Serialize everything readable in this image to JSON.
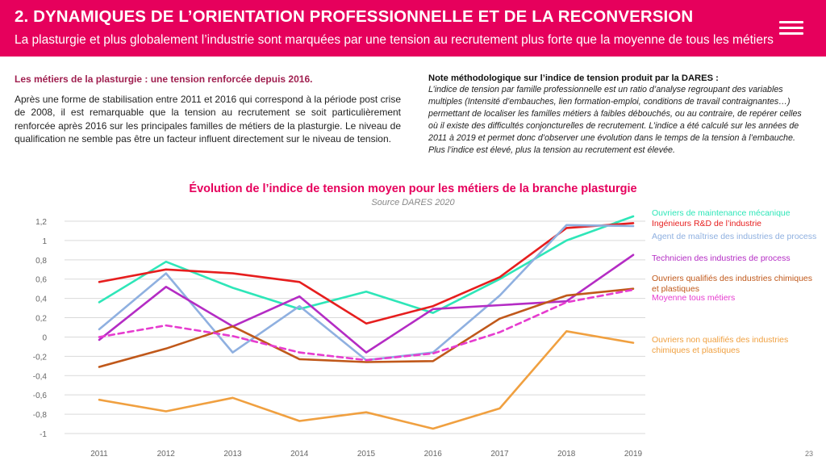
{
  "header": {
    "title": "2. DYNAMIQUES DE L’ORIENTATION PROFESSIONNELLE ET DE LA RECONVERSION",
    "subtitle": "La plasturgie et plus globalement l’industrie sont marquées par une tension au recrutement plus forte que la moyenne de tous les métiers",
    "brand_color": "#e6005c",
    "menu_icon": "hamburger-menu-icon"
  },
  "left": {
    "title": "Les métiers de la plasturgie : une tension renforcée depuis 2016.",
    "body": "Après une forme de stabilisation entre 2011 et 2016 qui correspond à la période post crise de 2008, il est remarquable que la tension au recrutement se soit particulièrement renforcée après 2016 sur les principales familles de métiers de la plasturgie. Le niveau de qualification ne semble pas être un facteur influent directement sur le niveau de tension."
  },
  "right": {
    "title": "Note méthodologique sur l’indice de tension produit par la DARES :",
    "body": "L’indice de tension par famille professionnelle est un ratio d’analyse regroupant des variables multiples (Intensité d’embauches, lien formation-emploi, conditions de travail contraignantes…) permettant de localiser les familles métiers à faibles débouchés, ou au contraire, de repérer celles où il existe des difficultés conjoncturelles de recrutement. L’indice a été calculé sur les années de 2011 à 2019 et permet donc d’observer une évolution dans le temps de la tension à l’embauche. Plus l’indice est élevé, plus la tension au recrutement est élevée."
  },
  "chart_data": {
    "type": "line",
    "title": "Évolution de l’indice de tension moyen pour les métiers de la branche plasturgie",
    "subtitle": "Source DARES 2020",
    "xlabel": "",
    "ylabel": "",
    "x": [
      "2011",
      "2012",
      "2013",
      "2014",
      "2015",
      "2016",
      "2017",
      "2018",
      "2019"
    ],
    "ylim": [
      -1,
      1.2
    ],
    "yticks": [
      "1,2",
      "1",
      "0,8",
      "0,6",
      "0,4",
      "0,2",
      "0",
      "-0,2",
      "-0,4",
      "-0,6",
      "-0,8",
      "-1"
    ],
    "grid": true,
    "legend": "right",
    "series": [
      {
        "name": "Ouvriers de maintenance mécanique",
        "color": "#2ee6b8",
        "dashed": false,
        "values": [
          0.36,
          0.78,
          0.51,
          0.29,
          0.47,
          0.25,
          0.6,
          1.0,
          1.25
        ]
      },
      {
        "name": "Ingénieurs R&D de l’industrie",
        "color": "#e61e1e",
        "dashed": false,
        "values": [
          0.57,
          0.7,
          0.66,
          0.57,
          0.14,
          0.32,
          0.62,
          1.13,
          1.18
        ]
      },
      {
        "name": "Agent de maîtrise des industries de process",
        "color": "#8fb0e0",
        "dashed": false,
        "values": [
          0.08,
          0.66,
          -0.16,
          0.32,
          -0.24,
          -0.16,
          0.43,
          1.16,
          1.15
        ]
      },
      {
        "name": "Technicien des industries de process",
        "color": "#b42cc4",
        "dashed": false,
        "values": [
          -0.03,
          0.52,
          0.11,
          0.42,
          -0.16,
          0.29,
          0.33,
          0.37,
          0.85
        ]
      },
      {
        "name": "Ouvriers qualifiés des industries chimiques et plastiques",
        "color": "#c0581a",
        "dashed": false,
        "values": [
          -0.31,
          -0.12,
          0.11,
          -0.23,
          -0.26,
          -0.25,
          0.19,
          0.43,
          0.5
        ]
      },
      {
        "name": "Moyenne tous métiers",
        "color": "#e63ccf",
        "dashed": true,
        "values": [
          0.0,
          0.12,
          0.01,
          -0.16,
          -0.24,
          -0.17,
          0.05,
          0.36,
          0.49
        ]
      },
      {
        "name": "Ouvriers non qualifiés des industries chimiques et plastiques",
        "color": "#f0a040",
        "dashed": false,
        "values": [
          -0.65,
          -0.77,
          -0.63,
          -0.87,
          -0.78,
          -0.95,
          -0.74,
          0.06,
          -0.06
        ]
      }
    ]
  },
  "page_number": "23"
}
